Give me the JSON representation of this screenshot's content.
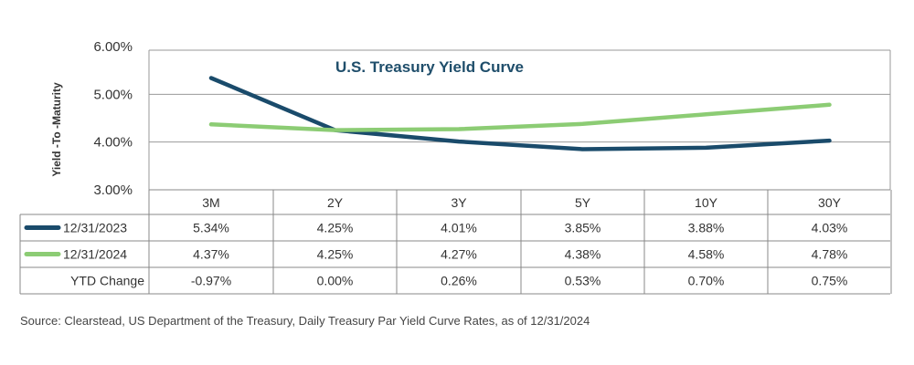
{
  "chart_data": {
    "type": "line",
    "title": "U.S. Treasury Yield Curve",
    "ylabel": "Yield -To -Maturity",
    "ylim": [
      3.0,
      6.0
    ],
    "yticks": [
      "6.00%",
      "5.00%",
      "4.00%",
      "3.00%"
    ],
    "ytick_values": [
      6,
      5,
      4,
      3
    ],
    "categories": [
      "3M",
      "2Y",
      "3Y",
      "5Y",
      "10Y",
      "30Y"
    ],
    "grid": true,
    "series": [
      {
        "name": "12/31/2023",
        "color": "#1a4b6b",
        "values": [
          5.34,
          4.25,
          4.01,
          3.85,
          3.88,
          4.03
        ],
        "labels": [
          "5.34%",
          "4.25%",
          "4.01%",
          "3.85%",
          "3.88%",
          "4.03%"
        ]
      },
      {
        "name": "12/31/2024",
        "color": "#8ccc74",
        "values": [
          4.37,
          4.25,
          4.27,
          4.38,
          4.58,
          4.78
        ],
        "labels": [
          "4.37%",
          "4.25%",
          "4.27%",
          "4.38%",
          "4.58%",
          "4.78%"
        ]
      }
    ],
    "table_rows": [
      {
        "label": "YTD Change",
        "values": [
          "-0.97%",
          "0.00%",
          "0.26%",
          "0.53%",
          "0.70%",
          "0.75%"
        ]
      }
    ]
  },
  "source": "Source: Clearstead, US Department of the Treasury, Daily Treasury Par Yield Curve Rates, as of 12/31/2024"
}
